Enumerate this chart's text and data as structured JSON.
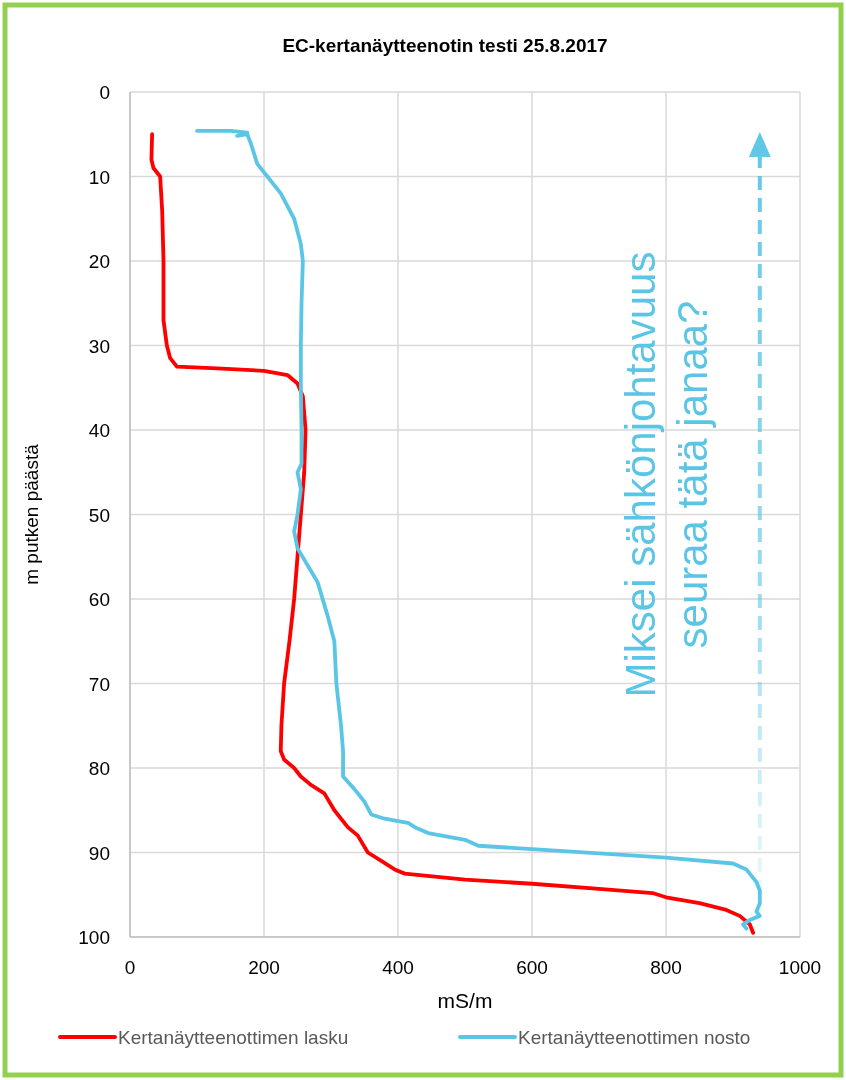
{
  "chart_data": {
    "type": "line",
    "title": "EC-kertanäytteenotin testi 25.8.2017",
    "xlabel": "mS/m",
    "ylabel": "m putken päästä",
    "xlim": [
      0,
      1000
    ],
    "xticks": [
      0,
      200,
      400,
      600,
      800,
      1000
    ],
    "ylim": [
      100,
      0
    ],
    "yticks": [
      0,
      10,
      20,
      30,
      40,
      50,
      60,
      70,
      80,
      90,
      100
    ],
    "grid": true,
    "legend": "bottom",
    "marker": "none",
    "line_style": "solid",
    "annotations": [
      "Miksei sähkönjohtavuus\nseuraa tätä janaa?"
    ],
    "series": [
      {
        "name": "Kertanäytteenottimen lasku",
        "color": "#ff0000",
        "x": [
          33,
          32,
          35,
          45,
          48,
          50,
          50,
          55,
          60,
          70,
          130,
          200,
          235,
          250,
          258,
          262,
          260,
          255,
          250,
          245,
          238,
          230,
          226,
          225,
          230,
          245,
          255,
          270,
          290,
          305,
          325,
          340,
          355,
          375,
          395,
          410,
          500,
          600,
          700,
          780,
          800,
          850,
          890,
          910,
          925,
          930
        ],
        "values": [
          5,
          8,
          9,
          10,
          14,
          20,
          27,
          30,
          31.5,
          32.5,
          32.7,
          33,
          33.5,
          34.5,
          36,
          40,
          45,
          50,
          55,
          60,
          65,
          70,
          75,
          78,
          79,
          80,
          81,
          82,
          83,
          85,
          87,
          88,
          90,
          91,
          92,
          92.5,
          93.2,
          93.7,
          94.3,
          94.8,
          95.3,
          96,
          96.8,
          97.5,
          98.5,
          99.5
        ]
      },
      {
        "name": "Kertanäytteenottimen nosto",
        "color": "#5bc5e6",
        "x": [
          100,
          150,
          175,
          160,
          175,
          180,
          190,
          205,
          225,
          245,
          255,
          258,
          256,
          255,
          255,
          256,
          256,
          250,
          255,
          250,
          245,
          250,
          265,
          280,
          295,
          305,
          308,
          315,
          318,
          318,
          335,
          350,
          360,
          380,
          400,
          415,
          425,
          445,
          500,
          520,
          600,
          800,
          900,
          920,
          935,
          940,
          940,
          935,
          940,
          925,
          915,
          920
        ],
        "values": [
          4.6,
          4.6,
          4.8,
          5.2,
          5,
          6,
          8.5,
          10,
          12,
          15,
          18,
          20,
          25,
          30,
          35,
          40,
          44,
          45,
          47,
          50,
          52,
          54,
          56,
          58,
          62,
          65,
          70,
          75,
          78,
          81,
          82.5,
          84,
          85.5,
          86,
          86.3,
          86.5,
          87,
          87.7,
          88.5,
          89.2,
          89.6,
          90.6,
          91.3,
          92,
          93.5,
          94.5,
          96,
          97,
          97.5,
          98,
          98.5,
          99
        ]
      }
    ]
  }
}
